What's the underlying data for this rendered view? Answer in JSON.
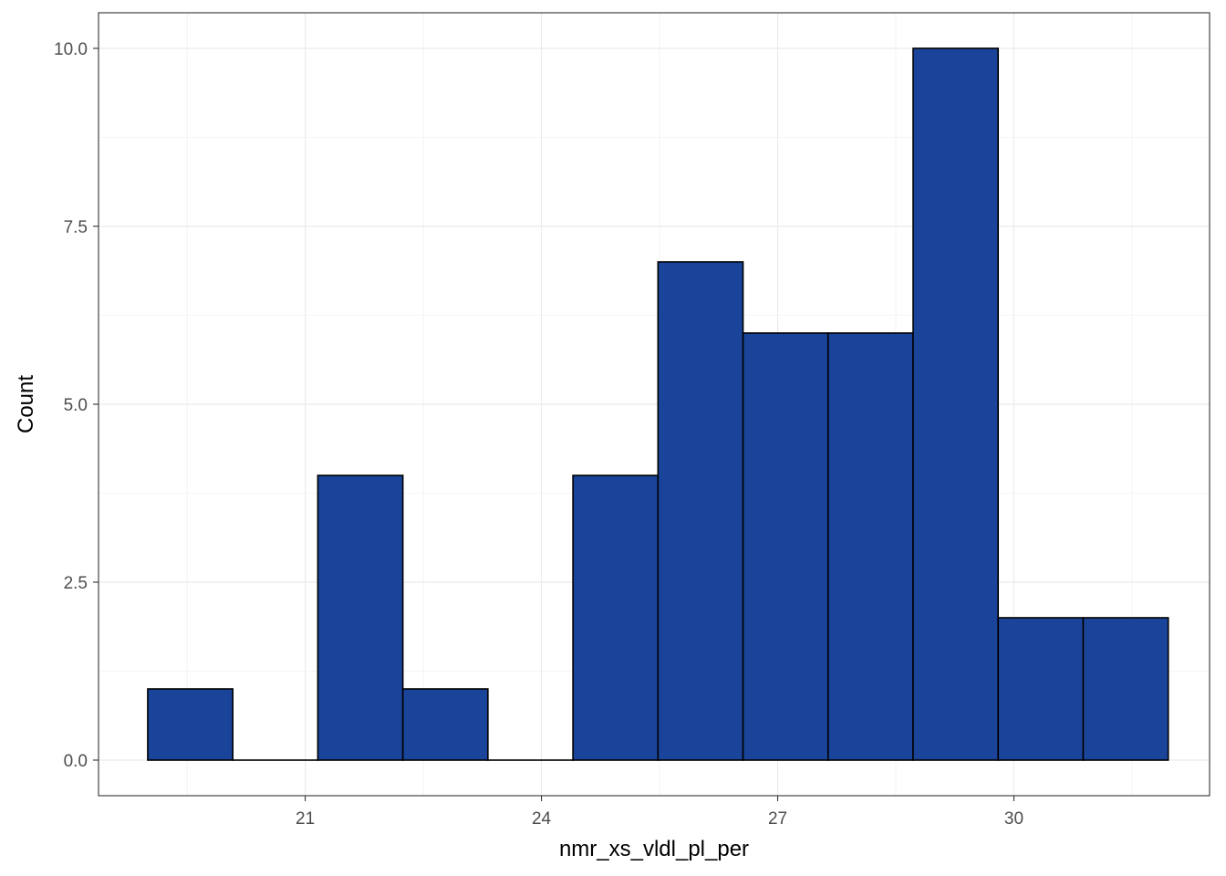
{
  "chart_data": {
    "type": "bar",
    "subtype": "histogram",
    "title": "",
    "xlabel": "nmr_xs_vldl_pl_per",
    "ylabel": "Count",
    "xlim": [
      18.375,
      32.485
    ],
    "ylim": [
      -0.5,
      10.5
    ],
    "x_ticks": [
      21,
      24,
      27,
      30
    ],
    "x_tick_labels": [
      "21",
      "24",
      "27",
      "30"
    ],
    "y_ticks": [
      0,
      2.5,
      5,
      7.5,
      10
    ],
    "y_tick_labels": [
      "0.0",
      "2.5",
      "5.0",
      "7.5",
      "10.0"
    ],
    "bins": [
      {
        "x0": 19.0,
        "x1": 20.08,
        "count": 1
      },
      {
        "x0": 20.08,
        "x1": 21.16,
        "count": 0
      },
      {
        "x0": 21.16,
        "x1": 22.24,
        "count": 4
      },
      {
        "x0": 22.24,
        "x1": 23.32,
        "count": 1
      },
      {
        "x0": 23.32,
        "x1": 24.4,
        "count": 0
      },
      {
        "x0": 24.4,
        "x1": 25.48,
        "count": 4
      },
      {
        "x0": 25.48,
        "x1": 26.56,
        "count": 7
      },
      {
        "x0": 26.56,
        "x1": 27.64,
        "count": 6
      },
      {
        "x0": 27.64,
        "x1": 28.72,
        "count": 6
      },
      {
        "x0": 28.72,
        "x1": 29.8,
        "count": 10
      },
      {
        "x0": 29.8,
        "x1": 30.88,
        "count": 2
      },
      {
        "x0": 30.88,
        "x1": 31.96,
        "count": 2
      }
    ],
    "bar_fill": "#1a4499",
    "bar_stroke": "#000000",
    "grid": true,
    "grid_color": "#ebebeb",
    "panel_border_color": "#333333",
    "legend": "none"
  }
}
